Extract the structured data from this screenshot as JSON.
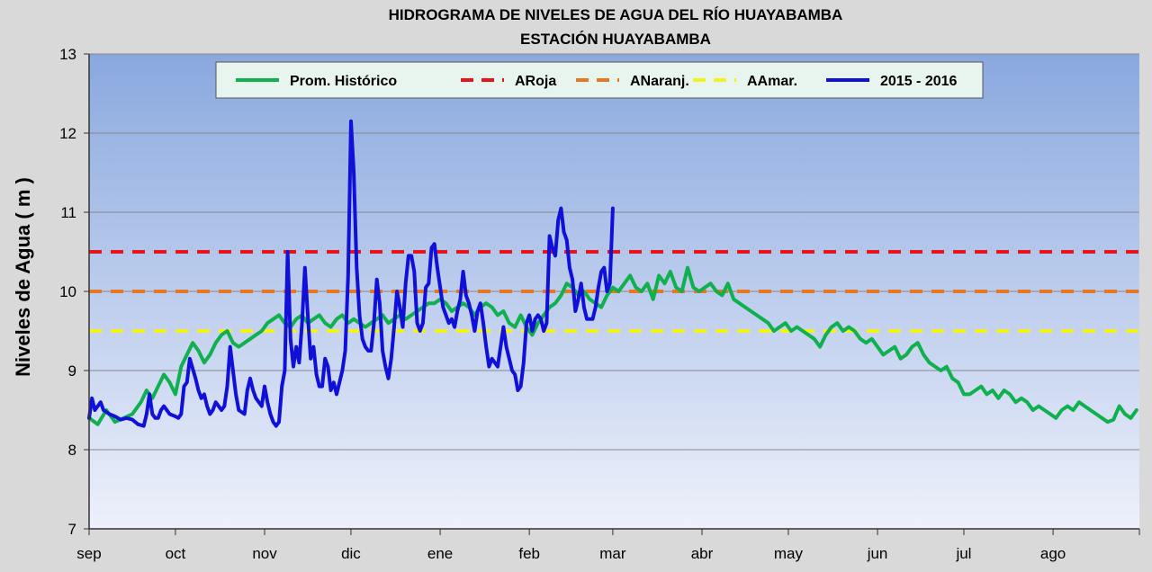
{
  "chart_data": {
    "type": "line",
    "title": "HIDROGRAMA DE NIVELES DE AGUA DEL RÍO HUAYABAMBA",
    "subtitle": "ESTACIÓN HUAYABAMBA",
    "xlabel": "",
    "ylabel": "Niveles de Agua ( m )",
    "ylim": [
      7,
      13
    ],
    "yticks": [
      "7",
      "8",
      "9",
      "10",
      "11",
      "12",
      "13"
    ],
    "xlim_days": [
      0,
      365
    ],
    "months": [
      {
        "label": "sep",
        "day": 0
      },
      {
        "label": "oct",
        "day": 30
      },
      {
        "label": "nov",
        "day": 61
      },
      {
        "label": "dic",
        "day": 91
      },
      {
        "label": "ene",
        "day": 122
      },
      {
        "label": "feb",
        "day": 153
      },
      {
        "label": "mar",
        "day": 182
      },
      {
        "label": "abr",
        "day": 213
      },
      {
        "label": "may",
        "day": 243
      },
      {
        "label": "jun",
        "day": 274
      },
      {
        "label": "jul",
        "day": 304
      },
      {
        "label": "ago",
        "day": 335
      }
    ],
    "grid": true,
    "legend_position": "top",
    "thresholds": [
      {
        "name": "ARoja",
        "value": 10.5,
        "color": "#e8141b"
      },
      {
        "name": "ANaranj.",
        "value": 10.0,
        "color": "#e87722"
      },
      {
        "name": "AAmar.",
        "value": 9.5,
        "color": "#f2f21d"
      }
    ],
    "series": [
      {
        "name": "Prom. Histórico",
        "color": "#11b04f",
        "x": [
          0,
          3,
          6,
          9,
          12,
          15,
          18,
          20,
          22,
          24,
          26,
          28,
          30,
          32,
          34,
          36,
          38,
          40,
          42,
          44,
          46,
          48,
          50,
          52,
          54,
          56,
          58,
          60,
          62,
          64,
          66,
          68,
          70,
          72,
          74,
          76,
          78,
          80,
          82,
          84,
          86,
          88,
          90,
          92,
          94,
          96,
          98,
          100,
          102,
          104,
          106,
          108,
          110,
          112,
          114,
          116,
          118,
          120,
          122,
          124,
          126,
          128,
          130,
          132,
          134,
          136,
          138,
          140,
          142,
          144,
          146,
          148,
          150,
          152,
          154,
          156,
          158,
          160,
          162,
          164,
          166,
          168,
          170,
          172,
          174,
          176,
          178,
          180,
          182,
          184,
          186,
          188,
          190,
          192,
          194,
          196,
          198,
          200,
          202,
          204,
          206,
          208,
          210,
          212,
          214,
          216,
          218,
          220,
          222,
          224,
          226,
          228,
          230,
          232,
          234,
          236,
          238,
          240,
          242,
          244,
          246,
          248,
          250,
          252,
          254,
          256,
          258,
          260,
          262,
          264,
          266,
          268,
          270,
          272,
          274,
          276,
          278,
          280,
          282,
          284,
          286,
          288,
          290,
          292,
          294,
          296,
          298,
          300,
          302,
          304,
          306,
          308,
          310,
          312,
          314,
          316,
          318,
          320,
          322,
          324,
          326,
          328,
          330,
          332,
          334,
          336,
          338,
          340,
          342,
          344,
          346,
          348,
          350,
          352,
          354,
          356,
          358,
          360,
          362,
          364
        ],
        "values": [
          8.4,
          8.32,
          8.5,
          8.35,
          8.4,
          8.45,
          8.6,
          8.75,
          8.65,
          8.8,
          8.95,
          8.85,
          8.7,
          9.05,
          9.2,
          9.35,
          9.25,
          9.1,
          9.2,
          9.35,
          9.45,
          9.5,
          9.35,
          9.3,
          9.35,
          9.4,
          9.45,
          9.5,
          9.6,
          9.65,
          9.7,
          9.6,
          9.55,
          9.65,
          9.7,
          9.6,
          9.65,
          9.7,
          9.6,
          9.55,
          9.65,
          9.7,
          9.6,
          9.65,
          9.6,
          9.55,
          9.6,
          9.65,
          9.7,
          9.6,
          9.65,
          9.7,
          9.65,
          9.7,
          9.75,
          9.8,
          9.85,
          9.85,
          9.9,
          9.85,
          9.75,
          9.8,
          9.85,
          9.8,
          9.7,
          9.8,
          9.85,
          9.8,
          9.7,
          9.75,
          9.6,
          9.55,
          9.7,
          9.55,
          9.45,
          9.6,
          9.7,
          9.8,
          9.85,
          9.95,
          10.1,
          10.05,
          9.95,
          10.0,
          9.9,
          9.85,
          9.8,
          9.95,
          10.05,
          10.0,
          10.1,
          10.2,
          10.05,
          10.0,
          10.1,
          9.9,
          10.2,
          10.1,
          10.25,
          10.05,
          10.0,
          10.3,
          10.05,
          10.0,
          10.05,
          10.1,
          10.0,
          9.95,
          10.1,
          9.9,
          9.85,
          9.8,
          9.75,
          9.7,
          9.65,
          9.6,
          9.5,
          9.55,
          9.6,
          9.5,
          9.55,
          9.5,
          9.45,
          9.4,
          9.3,
          9.45,
          9.55,
          9.6,
          9.5,
          9.55,
          9.5,
          9.4,
          9.35,
          9.4,
          9.3,
          9.2,
          9.25,
          9.3,
          9.15,
          9.2,
          9.3,
          9.35,
          9.2,
          9.1,
          9.05,
          9.0,
          9.05,
          8.9,
          8.85,
          8.7,
          8.7,
          8.75,
          8.8,
          8.7,
          8.75,
          8.65,
          8.75,
          8.7,
          8.6,
          8.65,
          8.6,
          8.5,
          8.55,
          8.5,
          8.45,
          8.4,
          8.5,
          8.55,
          8.5,
          8.6,
          8.55,
          8.5,
          8.45,
          8.4,
          8.35,
          8.38,
          8.55,
          8.45,
          8.4,
          8.5
        ]
      },
      {
        "name": "2015 - 2016",
        "color": "#1010d8",
        "x": [
          0,
          1,
          2,
          3,
          4,
          5,
          7,
          9,
          11,
          13,
          15,
          17,
          19,
          20,
          21,
          22,
          23,
          24,
          25,
          26,
          28,
          30,
          31,
          32,
          33,
          34,
          35,
          37,
          38,
          39,
          40,
          41,
          42,
          43,
          44,
          45,
          46,
          47,
          48,
          49,
          51,
          52,
          54,
          55,
          56,
          57,
          58,
          59,
          60,
          61,
          62,
          63,
          64,
          65,
          66,
          67,
          68,
          69,
          70,
          71,
          72,
          73,
          74,
          75,
          76,
          77,
          78,
          79,
          80,
          81,
          82,
          83,
          84,
          85,
          86,
          87,
          88,
          89,
          90,
          91,
          92,
          93,
          94,
          95,
          96,
          97,
          98,
          99,
          100,
          101,
          102,
          103,
          104,
          105,
          106,
          107,
          108,
          109,
          110,
          111,
          112,
          113,
          114,
          115,
          116,
          117,
          118,
          119,
          120,
          121,
          122,
          123,
          124,
          125,
          126,
          127,
          128,
          129,
          130,
          131,
          132,
          133,
          134,
          135,
          136,
          137,
          138,
          139,
          140,
          141,
          142,
          143,
          144,
          145,
          146,
          147,
          148,
          149,
          150,
          151,
          152,
          153,
          154,
          155,
          156,
          157,
          158,
          159,
          160,
          161,
          162,
          163,
          164,
          165,
          166,
          167,
          168,
          169,
          170,
          171,
          172,
          173,
          174,
          175,
          176,
          177,
          178,
          179,
          180,
          181,
          182
        ],
        "values": [
          8.4,
          8.65,
          8.5,
          8.55,
          8.6,
          8.5,
          8.45,
          8.42,
          8.38,
          8.4,
          8.38,
          8.32,
          8.3,
          8.45,
          8.7,
          8.45,
          8.4,
          8.4,
          8.5,
          8.55,
          8.45,
          8.42,
          8.4,
          8.45,
          8.8,
          8.85,
          9.15,
          8.9,
          8.75,
          8.65,
          8.7,
          8.55,
          8.45,
          8.5,
          8.6,
          8.55,
          8.5,
          8.55,
          8.8,
          9.3,
          8.7,
          8.5,
          8.45,
          8.75,
          8.9,
          8.75,
          8.65,
          8.6,
          8.55,
          8.8,
          8.6,
          8.45,
          8.35,
          8.3,
          8.35,
          8.8,
          9.0,
          10.5,
          9.4,
          9.05,
          9.3,
          9.1,
          9.6,
          10.3,
          9.7,
          9.15,
          9.3,
          8.95,
          8.8,
          8.8,
          9.15,
          9.05,
          8.75,
          8.85,
          8.7,
          8.85,
          9.0,
          9.25,
          10.2,
          12.15,
          11.5,
          10.3,
          9.7,
          9.4,
          9.3,
          9.25,
          9.25,
          9.6,
          10.15,
          9.85,
          9.25,
          9.05,
          8.9,
          9.15,
          9.55,
          10.0,
          9.8,
          9.55,
          10.1,
          10.45,
          10.45,
          10.25,
          9.6,
          9.5,
          9.6,
          10.05,
          10.1,
          10.55,
          10.6,
          10.3,
          10.05,
          9.8,
          9.7,
          9.6,
          9.65,
          9.55,
          9.75,
          9.9,
          10.25,
          9.95,
          9.85,
          9.7,
          9.5,
          9.75,
          9.85,
          9.6,
          9.3,
          9.05,
          9.15,
          9.1,
          9.05,
          9.3,
          9.55,
          9.3,
          9.15,
          9.0,
          8.95,
          8.75,
          8.8,
          9.1,
          9.6,
          9.7,
          9.5,
          9.65,
          9.7,
          9.65,
          9.5,
          9.6,
          10.7,
          10.55,
          10.45,
          10.9,
          11.05,
          10.75,
          10.65,
          10.3,
          10.15,
          9.75,
          9.9,
          10.1,
          9.8,
          9.65,
          9.65,
          9.65,
          9.8,
          10.05,
          10.25,
          10.3,
          10.0,
          10.1,
          11.05
        ]
      }
    ]
  }
}
